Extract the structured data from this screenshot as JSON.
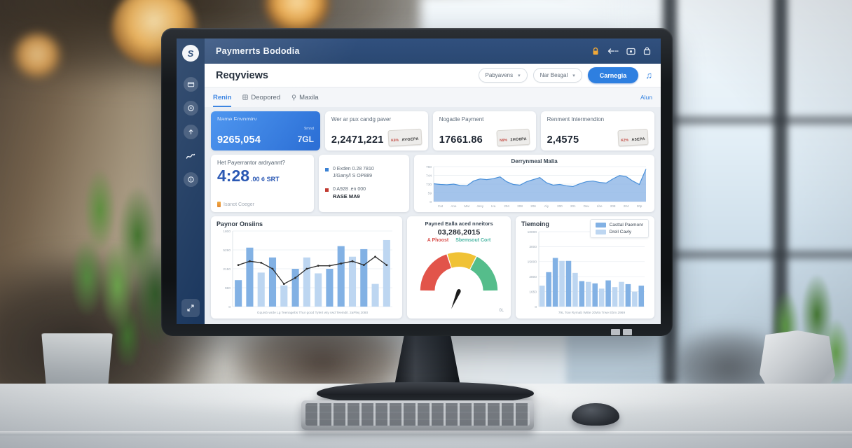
{
  "header": {
    "title": "Paymerrts Bododia"
  },
  "sidebar": {
    "logo_glyph": "S"
  },
  "toolbar": {
    "heading": "Reqyviews",
    "filters": [
      {
        "value": "Pabyavens"
      },
      {
        "value": "Nar Besgal"
      }
    ],
    "primary_button": "Carnegia"
  },
  "tabs": {
    "items": [
      {
        "label": "Renin"
      },
      {
        "label": "Deopored"
      },
      {
        "label": "Maxila"
      }
    ],
    "right_link": "Alun"
  },
  "kpis": [
    {
      "label": "Name Foynmiry",
      "value": "9265,054",
      "sub_top": "9mnd",
      "sub": "7GL"
    },
    {
      "label": "Wer ar pux candg paver",
      "value": "2,2471,221",
      "badge_top": "K6%",
      "badge_bottom": "AVGEPA"
    },
    {
      "label": "Nogadie Payment",
      "value": "17661.86",
      "badge_top": "N9%",
      "badge_bottom": "2HO8PA"
    },
    {
      "label": "Renment Intermendion",
      "value": "2,4575",
      "badge_top": "K2%",
      "badge_bottom": "A5EPA"
    }
  ],
  "time_card": {
    "title": "Het Payerrantor ardryannt?",
    "time_big": "4:28",
    "time_small": ".00 ¢ SRT",
    "footnote": "Isanot Coeger"
  },
  "list_card": {
    "items": [
      {
        "color": "#3b82d4",
        "line1": "0 Exden 0.28 7810",
        "line2": "J/Gany/l S OP889"
      },
      {
        "color": "#c13a30",
        "line1": "0 A928 .en 000",
        "line2": "RASE MA9"
      }
    ]
  },
  "chart_data": [
    {
      "type": "area",
      "title": "Derrynmeal Malia",
      "y_ticks": [
        "760",
        "744",
        "730",
        "59",
        "0"
      ],
      "x_labels": [
        "Cat",
        "Ane",
        "Mar",
        "Jeny",
        "Iva",
        "204",
        "208",
        "206",
        "Aly",
        "200",
        "201",
        "Dav",
        "Lbe",
        "208",
        "204",
        "20p"
      ],
      "values": [
        52,
        50,
        49,
        51,
        47,
        46,
        60,
        66,
        64,
        67,
        72,
        58,
        50,
        48,
        58,
        64,
        70,
        55,
        48,
        50,
        46,
        44,
        52,
        58,
        60,
        56,
        54,
        66,
        76,
        73,
        60,
        50,
        95
      ],
      "ylim": [
        0,
        100
      ],
      "grid": true,
      "stroke": "#4a90d9",
      "fill": "rgba(139,180,230,0.78)"
    },
    {
      "type": "bar-line",
      "title": "Paynor Onsiins",
      "y_ticks": [
        "1800",
        "5290",
        "2150",
        "980",
        "0"
      ],
      "x_caption": "Gquivb wrde Lg Teenagebs Thur good Tylert wty rwd Teeindil. 2aPlwj 2080",
      "bars": [
        35,
        78,
        45,
        65,
        28,
        50,
        65,
        44,
        50,
        80,
        66,
        76,
        30,
        88
      ],
      "bar_shades": [
        "d",
        "d",
        "l",
        "d",
        "l",
        "d",
        "l",
        "l",
        "d",
        "d",
        "l",
        "d",
        "l",
        "l"
      ],
      "bar_colors": {
        "d": "#82b1e4",
        "l": "#bdd6f1"
      },
      "line": [
        55,
        60,
        58,
        50,
        30,
        38,
        50,
        54,
        54,
        57,
        60,
        55,
        66,
        55
      ],
      "line_color": "#2e2e2e",
      "ylim": [
        0,
        100
      ],
      "grid": true
    },
    {
      "type": "gauge",
      "title": "Payned Ealla aced nneitors",
      "value": "03,286,2015",
      "label_left": "A Phoost",
      "label_left_color": "#d9534f",
      "label_right": "Sbemsout Cort",
      "label_right_color": "#4db6a4",
      "segments": [
        {
          "color": "#e2544a",
          "frac": 0.4
        },
        {
          "color": "#f0c235",
          "frac": 0.25
        },
        {
          "color": "#55bd8b",
          "frac": 0.35
        }
      ],
      "needle_deg": 247,
      "corner_label": "0L"
    },
    {
      "type": "grouped-bar",
      "title": "Tiemoing",
      "y_ticks": [
        "10000",
        "3000",
        "15000",
        "2800",
        "1650",
        "0"
      ],
      "x_caption": "79L Tow Rymab W8te 20Wa Trwe Ebm 2969",
      "legend": [
        "Casttal Paemonr",
        "Drell Cavly"
      ],
      "values": [
        28,
        46,
        65,
        61,
        61,
        45,
        34,
        33,
        31,
        24,
        35,
        26,
        33,
        30,
        20,
        28
      ],
      "shades": [
        "l",
        "d",
        "d",
        "l",
        "d",
        "l",
        "d",
        "l",
        "d",
        "l",
        "d",
        "l",
        "l",
        "d",
        "l",
        "d"
      ],
      "bar_colors": {
        "d": "#82b1e4",
        "l": "#bdd6f1"
      },
      "ylim": [
        0,
        100
      ],
      "grid": true,
      "legend_position": "top-right"
    }
  ]
}
